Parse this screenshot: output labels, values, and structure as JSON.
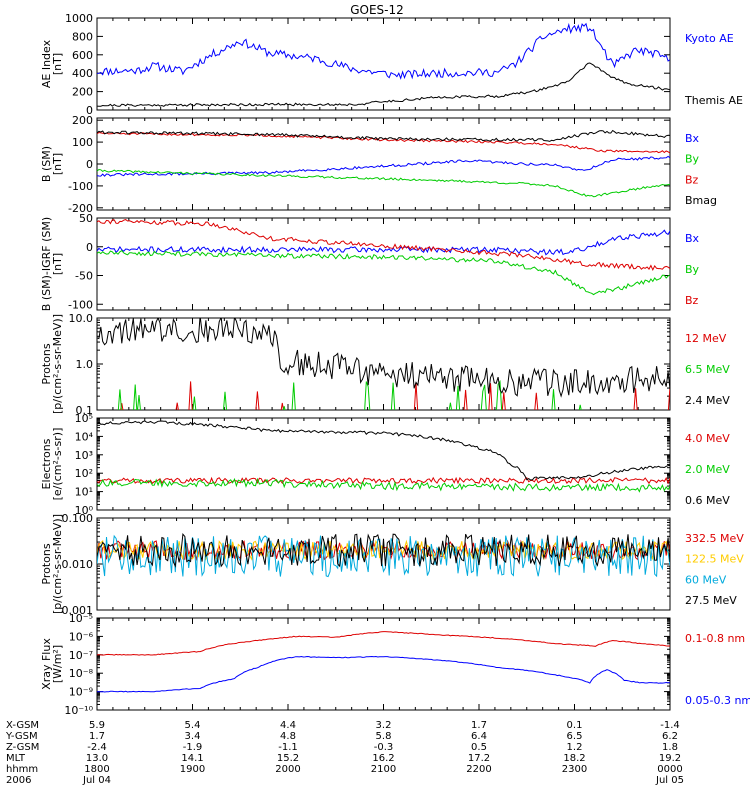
{
  "title": "GOES-12",
  "chart_data": [
    {
      "type": "line",
      "panel": "ae",
      "ylabel": [
        "AE Index",
        "[nT]"
      ],
      "ylim": [
        0,
        1000
      ],
      "yscale": "linear",
      "ticks": [
        {
          "v": 0,
          "t": "0"
        },
        {
          "v": 200,
          "t": "200"
        },
        {
          "v": 400,
          "t": "400"
        },
        {
          "v": 600,
          "t": "600"
        },
        {
          "v": 800,
          "t": "800"
        },
        {
          "v": 1000,
          "t": "1000"
        }
      ],
      "series": [
        {
          "name": "Kyoto AE",
          "color": "#0000ff",
          "shape": [
            [
              0,
              420
            ],
            [
              0.07,
              430
            ],
            [
              0.1,
              480
            ],
            [
              0.15,
              420
            ],
            [
              0.2,
              600
            ],
            [
              0.25,
              750
            ],
            [
              0.3,
              620
            ],
            [
              0.38,
              560
            ],
            [
              0.45,
              440
            ],
            [
              0.52,
              380
            ],
            [
              0.6,
              400
            ],
            [
              0.7,
              410
            ],
            [
              0.73,
              500
            ],
            [
              0.78,
              800
            ],
            [
              0.82,
              880
            ],
            [
              0.86,
              900
            ],
            [
              0.9,
              480
            ],
            [
              0.94,
              650
            ],
            [
              0.97,
              620
            ],
            [
              1,
              540
            ]
          ],
          "noise": 45,
          "seed": 11
        },
        {
          "name": "Themis AE",
          "color": "#000000",
          "shape": [
            [
              0,
              50
            ],
            [
              0.3,
              60
            ],
            [
              0.45,
              60
            ],
            [
              0.5,
              90
            ],
            [
              0.6,
              140
            ],
            [
              0.7,
              150
            ],
            [
              0.76,
              200
            ],
            [
              0.82,
              300
            ],
            [
              0.86,
              520
            ],
            [
              0.89,
              380
            ],
            [
              0.93,
              280
            ],
            [
              1,
              220
            ]
          ],
          "noise": 14,
          "seed": 21
        }
      ]
    },
    {
      "type": "line",
      "panel": "bgsm",
      "ylabel": [
        "B (SM)",
        "[nT]"
      ],
      "ylim": [
        -210,
        210
      ],
      "yscale": "linear",
      "ticks": [
        {
          "v": 200,
          "t": "200"
        },
        {
          "v": 100,
          "t": "100"
        },
        {
          "v": 0,
          "t": "0"
        },
        {
          "v": -100,
          "t": "-100"
        },
        {
          "v": -200,
          "t": "-200"
        }
      ],
      "series": [
        {
          "name": "Bx",
          "color": "#0000ff",
          "shape": [
            [
              0,
              -50
            ],
            [
              0.3,
              -40
            ],
            [
              0.5,
              -10
            ],
            [
              0.65,
              15
            ],
            [
              0.75,
              0
            ],
            [
              0.8,
              -5
            ],
            [
              0.85,
              -30
            ],
            [
              0.9,
              20
            ],
            [
              1,
              30
            ]
          ],
          "noise": 6,
          "seed": 31
        },
        {
          "name": "By",
          "color": "#00cc00",
          "shape": [
            [
              0,
              -30
            ],
            [
              0.2,
              -45
            ],
            [
              0.4,
              -60
            ],
            [
              0.6,
              -75
            ],
            [
              0.75,
              -90
            ],
            [
              0.8,
              -100
            ],
            [
              0.86,
              -150
            ],
            [
              0.95,
              -110
            ],
            [
              1,
              -90
            ]
          ],
          "noise": 5,
          "seed": 41
        },
        {
          "name": "Bz",
          "color": "#dd0000",
          "shape": [
            [
              0,
              140
            ],
            [
              0.3,
              130
            ],
            [
              0.5,
              110
            ],
            [
              0.7,
              100
            ],
            [
              0.8,
              90
            ],
            [
              0.88,
              60
            ],
            [
              1,
              55
            ]
          ],
          "noise": 5,
          "seed": 51
        },
        {
          "name": "Bmag",
          "color": "#000000",
          "shape": [
            [
              0,
              145
            ],
            [
              0.3,
              135
            ],
            [
              0.5,
              115
            ],
            [
              0.7,
              110
            ],
            [
              0.8,
              110
            ],
            [
              0.88,
              150
            ],
            [
              0.93,
              140
            ],
            [
              1,
              125
            ]
          ],
          "noise": 7,
          "seed": 61
        }
      ]
    },
    {
      "type": "line",
      "panel": "bigrf",
      "ylabel": [
        "B (SM)-IGRF (SM)",
        "[nT]"
      ],
      "ylim": [
        -110,
        50
      ],
      "yscale": "linear",
      "ticks": [
        {
          "v": 50,
          "t": "50"
        },
        {
          "v": 0,
          "t": "0"
        },
        {
          "v": -50,
          "t": "-50"
        },
        {
          "v": -100,
          "t": "-100"
        }
      ],
      "series": [
        {
          "name": "Bx",
          "color": "#0000ff",
          "shape": [
            [
              0,
              -5
            ],
            [
              0.3,
              -5
            ],
            [
              0.5,
              -5
            ],
            [
              0.7,
              -5
            ],
            [
              0.8,
              -10
            ],
            [
              0.85,
              -5
            ],
            [
              0.9,
              15
            ],
            [
              1,
              25
            ]
          ],
          "noise": 5,
          "seed": 71
        },
        {
          "name": "By",
          "color": "#00cc00",
          "shape": [
            [
              0,
              -10
            ],
            [
              0.3,
              -15
            ],
            [
              0.5,
              -18
            ],
            [
              0.7,
              -25
            ],
            [
              0.8,
              -45
            ],
            [
              0.86,
              -80
            ],
            [
              0.9,
              -75
            ],
            [
              1,
              -50
            ]
          ],
          "noise": 4,
          "seed": 81
        },
        {
          "name": "Bz",
          "color": "#dd0000",
          "shape": [
            [
              0,
              45
            ],
            [
              0.2,
              40
            ],
            [
              0.3,
              15
            ],
            [
              0.45,
              5
            ],
            [
              0.6,
              -5
            ],
            [
              0.75,
              -15
            ],
            [
              0.85,
              -30
            ],
            [
              1,
              -38
            ]
          ],
          "noise": 4,
          "seed": 91
        }
      ]
    },
    {
      "type": "line",
      "panel": "protons_le",
      "ylabel": [
        "Protons",
        "[p/(cm²-s-sr-MeV)]"
      ],
      "ylim": [
        0.1,
        10
      ],
      "yscale": "log",
      "ticks": [
        {
          "v": 0.1,
          "t": "0.1"
        },
        {
          "v": 1,
          "t": "1.0"
        },
        {
          "v": 10,
          "t": "10.0"
        }
      ],
      "series": [
        {
          "name": "12 MeV",
          "color": "#dd0000",
          "shape": [
            [
              0,
              0.09
            ],
            [
              1,
              0.09
            ]
          ],
          "noise": 0.03,
          "seed": 101,
          "spiky": true
        },
        {
          "name": "6.5 MeV",
          "color": "#00cc00",
          "shape": [
            [
              0,
              0.09
            ],
            [
              1,
              0.09
            ]
          ],
          "noise": 0.03,
          "seed": 111,
          "spiky": true
        },
        {
          "name": "2.4 MeV",
          "color": "#000000",
          "shape": [
            [
              0,
              5
            ],
            [
              0.2,
              6
            ],
            [
              0.3,
              5
            ],
            [
              0.32,
              1.2
            ],
            [
              0.5,
              0.6
            ],
            [
              0.7,
              0.4
            ],
            [
              0.85,
              0.4
            ],
            [
              1,
              0.5
            ]
          ],
          "noise": 0.3,
          "seed": 121
        }
      ]
    },
    {
      "type": "line",
      "panel": "electrons",
      "ylabel": [
        "Electrons",
        "[e/(cm²-s-sr)]"
      ],
      "ylim": [
        1,
        100000
      ],
      "yscale": "log",
      "ticks": [
        {
          "v": 1,
          "t": "10⁰"
        },
        {
          "v": 10,
          "t": "10¹"
        },
        {
          "v": 100,
          "t": "10²"
        },
        {
          "v": 1000,
          "t": "10³"
        },
        {
          "v": 10000,
          "t": "10⁴"
        },
        {
          "v": 100000,
          "t": "10⁵"
        }
      ],
      "series": [
        {
          "name": "4.0 MeV",
          "color": "#dd0000",
          "shape": [
            [
              0,
              40
            ],
            [
              1,
              40
            ]
          ],
          "noise": 0.15,
          "seed": 131
        },
        {
          "name": "2.0 MeV",
          "color": "#00cc00",
          "shape": [
            [
              0,
              30
            ],
            [
              0.3,
              30
            ],
            [
              0.5,
              20
            ],
            [
              1,
              15
            ]
          ],
          "noise": 0.2,
          "seed": 141
        },
        {
          "name": "0.6 MeV",
          "color": "#000000",
          "shape": [
            [
              0,
              50000
            ],
            [
              0.1,
              60000
            ],
            [
              0.2,
              40000
            ],
            [
              0.3,
              20000
            ],
            [
              0.5,
              15000
            ],
            [
              0.65,
              3000
            ],
            [
              0.72,
              300
            ],
            [
              0.75,
              50
            ],
            [
              0.85,
              60
            ],
            [
              0.93,
              150
            ],
            [
              1,
              250
            ]
          ],
          "noise": 0.08,
          "seed": 151
        }
      ]
    },
    {
      "type": "line",
      "panel": "protons_he",
      "ylabel": [
        "Protons",
        "[p/(cm²-s-sr-MeV)]"
      ],
      "ylim": [
        0.001,
        0.1
      ],
      "yscale": "log",
      "ticks": [
        {
          "v": 0.001,
          "t": "0.001"
        },
        {
          "v": 0.01,
          "t": "0.010"
        },
        {
          "v": 0.1,
          "t": "0.100"
        }
      ],
      "series": [
        {
          "name": "332.5 MeV",
          "color": "#dd0000",
          "shape": [
            [
              0,
              0.02
            ],
            [
              1,
              0.02
            ]
          ],
          "noise": 0.2,
          "seed": 161
        },
        {
          "name": "122.5 MeV",
          "color": "#ffcc00",
          "shape": [
            [
              0,
              0.02
            ],
            [
              1,
              0.02
            ]
          ],
          "noise": 0.2,
          "seed": 171
        },
        {
          "name": "60 MeV",
          "color": "#00aadd",
          "shape": [
            [
              0,
              0.015
            ],
            [
              1,
              0.015
            ]
          ],
          "noise": 0.45,
          "seed": 181
        },
        {
          "name": "27.5 MeV",
          "color": "#000000",
          "shape": [
            [
              0,
              0.02
            ],
            [
              1,
              0.02
            ]
          ],
          "noise": 0.35,
          "seed": 191
        }
      ]
    },
    {
      "type": "line",
      "panel": "xray",
      "ylabel": [
        "Xray Flux",
        "[W/m²]"
      ],
      "ylim": [
        1e-10,
        1e-05
      ],
      "yscale": "log",
      "ticks": [
        {
          "v": 1e-10,
          "t": "10⁻¹⁰"
        },
        {
          "v": 1e-09,
          "t": "10⁻⁹"
        },
        {
          "v": 1e-08,
          "t": "10⁻⁸"
        },
        {
          "v": 1e-07,
          "t": "10⁻⁷"
        },
        {
          "v": 1e-06,
          "t": "10⁻⁶"
        },
        {
          "v": 1e-05,
          "t": "10⁻⁵"
        }
      ],
      "series": [
        {
          "name": "0.1-0.8 nm",
          "color": "#dd0000",
          "shape": [
            [
              0,
              1e-07
            ],
            [
              0.1,
              1e-07
            ],
            [
              0.18,
              1.5e-07
            ],
            [
              0.28,
              6e-07
            ],
            [
              0.35,
              1e-06
            ],
            [
              0.42,
              9e-07
            ],
            [
              0.5,
              1.8e-06
            ],
            [
              0.6,
              1.2e-06
            ],
            [
              0.7,
              8e-07
            ],
            [
              0.8,
              4e-07
            ],
            [
              0.87,
              3e-07
            ],
            [
              0.9,
              6e-07
            ],
            [
              0.95,
              4e-07
            ],
            [
              1,
              3e-07
            ]
          ],
          "noise": 0.02,
          "seed": 201
        },
        {
          "name": "0.05-0.3 nm",
          "color": "#0000ff",
          "shape": [
            [
              0,
              1e-09
            ],
            [
              0.1,
              1e-09
            ],
            [
              0.18,
              1.5e-09
            ],
            [
              0.24,
              5e-09
            ],
            [
              0.28,
              2e-08
            ],
            [
              0.35,
              8e-08
            ],
            [
              0.42,
              7e-08
            ],
            [
              0.5,
              8e-08
            ],
            [
              0.6,
              5e-08
            ],
            [
              0.7,
              2e-08
            ],
            [
              0.8,
              8e-09
            ],
            [
              0.86,
              3e-09
            ],
            [
              0.89,
              1.5e-08
            ],
            [
              0.92,
              4e-09
            ],
            [
              0.95,
              3e-09
            ],
            [
              1,
              3e-09
            ]
          ],
          "noise": 0.02,
          "seed": 211
        }
      ]
    }
  ],
  "legend_labels": [
    [
      "Kyoto AE",
      "Themis AE"
    ],
    [
      "Bx",
      "By",
      "Bz",
      "Bmag"
    ],
    [
      "Bx",
      "By",
      "Bz"
    ],
    [
      "12 MeV",
      "6.5 MeV",
      "2.4 MeV"
    ],
    [
      "4.0 MeV",
      "2.0 MeV",
      "0.6 MeV"
    ],
    [
      "332.5 MeV",
      "122.5 MeV",
      "60 MeV",
      "27.5 MeV"
    ],
    [
      "0.1-0.8 nm",
      "0.05-0.3 nm"
    ]
  ],
  "time_axis": {
    "row_labels": [
      "X-GSM",
      "Y-GSM",
      "Z-GSM",
      "MLT",
      "hhmm",
      "2006"
    ],
    "columns": [
      [
        "5.9",
        "1.7",
        "-2.4",
        "13.0",
        "1800",
        "Jul 04"
      ],
      [
        "5.4",
        "3.4",
        "-1.9",
        "14.1",
        "1900",
        ""
      ],
      [
        "4.4",
        "4.8",
        "-1.1",
        "15.2",
        "2000",
        ""
      ],
      [
        "3.2",
        "5.8",
        "-0.3",
        "16.2",
        "2100",
        ""
      ],
      [
        "1.7",
        "6.4",
        "0.5",
        "17.2",
        "2200",
        ""
      ],
      [
        "0.1",
        "6.5",
        "1.2",
        "18.2",
        "2300",
        ""
      ],
      [
        "-1.4",
        "6.2",
        "1.8",
        "19.2",
        "0000",
        "Jul 05"
      ]
    ]
  }
}
